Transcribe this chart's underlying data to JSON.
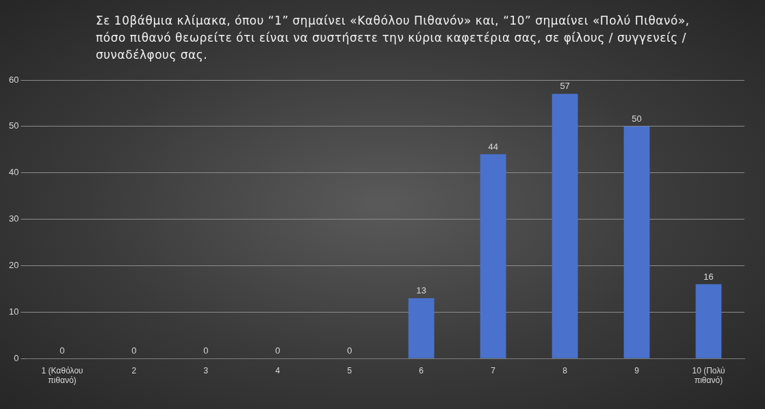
{
  "chart_data": {
    "type": "bar",
    "title": "Σε 10βάθμια κλίμακα, όπου “1” σημαίνει «Καθόλου Πιθανόν» και, “10” σημαίνει «Πολύ Πιθανό», πόσο πιθανό θεωρείτε ότι είναι  να συστήσετε την κύρια καφετέρια σας, σε φίλους / συγγενείς / συναδέλφους σας.",
    "categories": [
      "1 (Καθόλου πιθανό)",
      "2",
      "3",
      "4",
      "5",
      "6",
      "7",
      "8",
      "9",
      "10 (Πολύ πιθανό)"
    ],
    "values": [
      0,
      0,
      0,
      0,
      0,
      13,
      44,
      57,
      50,
      16
    ],
    "color": "#4a72cc",
    "ylim": [
      0,
      60
    ],
    "yticks": [
      0,
      10,
      20,
      30,
      40,
      50,
      60
    ],
    "grid": "y",
    "data_labels": true,
    "legend": false
  }
}
